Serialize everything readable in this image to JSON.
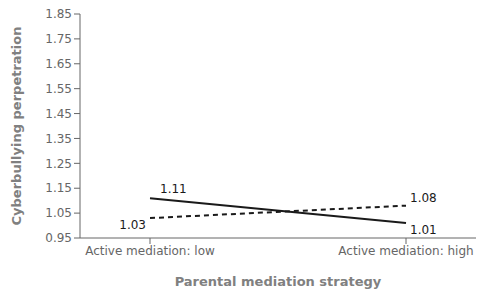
{
  "chart_data": {
    "type": "line",
    "categories": [
      "Active mediation: low",
      "Active mediation: high"
    ],
    "series": [
      {
        "color": "#1a1a1a",
        "line_style": "solid",
        "values": [
          1.11,
          1.01
        ]
      },
      {
        "color": "#1a1a1a",
        "line_style": "dashed",
        "values": [
          1.03,
          1.08
        ]
      }
    ],
    "xlabel": "Parental mediation strategy",
    "ylabel": "Cyberbullying perpetration",
    "ylim": [
      0.95,
      1.85
    ],
    "yticks": [
      0.95,
      1.05,
      1.15,
      1.25,
      1.35,
      1.45,
      1.55,
      1.65,
      1.75,
      1.85
    ],
    "grid": false,
    "data_labels": true
  }
}
